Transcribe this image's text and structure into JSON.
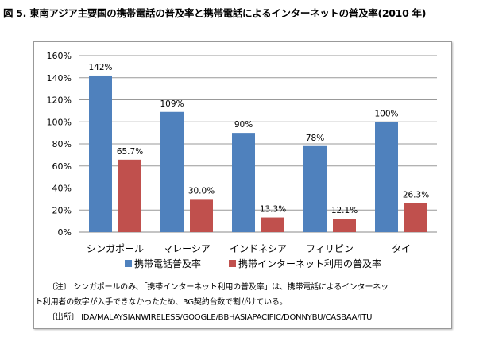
{
  "title": "図 5. 東南アジア主要国の携帯電話の普及率と携帯電話によるインターネットの普及率(2010 年)",
  "chart_data": {
    "type": "bar",
    "categories": [
      "シンガポール",
      "マレーシア",
      "インドネシア",
      "フィリピン",
      "タイ"
    ],
    "series": [
      {
        "name": "携帯電話普及率",
        "values": [
          142,
          109,
          90,
          78,
          100
        ],
        "labels": [
          "142%",
          "109%",
          "90%",
          "78%",
          "100%"
        ],
        "color": "#4F81BD"
      },
      {
        "name": "携帯インターネット利用の普及率",
        "values": [
          65.7,
          30.0,
          13.3,
          12.1,
          26.3
        ],
        "labels": [
          "65.7%",
          "30.0%",
          "13.3%",
          "12.1%",
          "26.3%"
        ],
        "color": "#C0504D"
      }
    ],
    "yticks": [
      "0%",
      "20%",
      "40%",
      "60%",
      "80%",
      "100%",
      "120%",
      "140%",
      "160%"
    ],
    "ylim": [
      0,
      160
    ],
    "grid": true,
    "legend": "bottom"
  },
  "notes": {
    "note1": "〔注〕 シンガポールのみ、「携帯インターネット利用の普及率」は、携帯電話によるインターネッ",
    "note2": "ト利用者の数字が入手できなかったため、3G契約台数で割がけている。",
    "source": "〔出所〕 IDA/MALAYSIANWIRELESS/GOOGLE/BBHASIAPACIFIC/DONNYBU/CASBAA/ITU"
  }
}
